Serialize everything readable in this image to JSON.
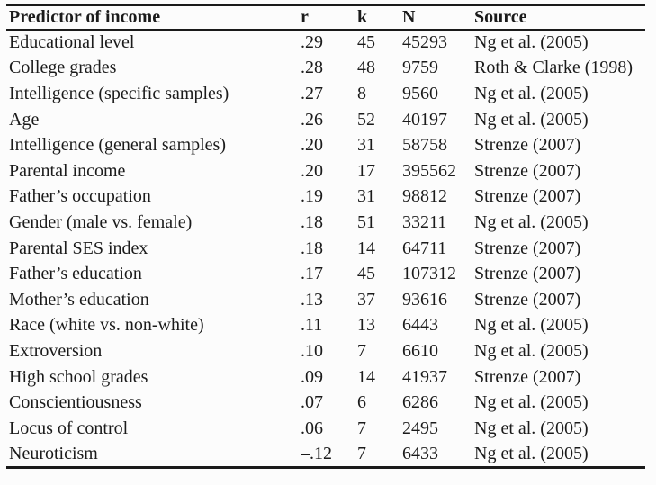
{
  "page": {
    "background": "#fcfcfc",
    "text_color": "#1b1b1b",
    "rule_color": "#1a1a1a"
  },
  "table": {
    "columns": [
      {
        "key": "predictor",
        "label": "Predictor of income"
      },
      {
        "key": "r",
        "label": "r"
      },
      {
        "key": "k",
        "label": "k"
      },
      {
        "key": "n",
        "label": "N"
      },
      {
        "key": "source",
        "label": "Source"
      }
    ],
    "rows": [
      {
        "predictor": "Educational level",
        "r": ".29",
        "k": "45",
        "n": "45293",
        "source": "Ng et al. (2005)"
      },
      {
        "predictor": "College grades",
        "r": ".28",
        "k": "48",
        "n": "9759",
        "source": "Roth & Clarke (1998)"
      },
      {
        "predictor": "Intelligence (specific samples)",
        "r": ".27",
        "k": "8",
        "n": "9560",
        "source": "Ng et al. (2005)"
      },
      {
        "predictor": "Age",
        "r": ".26",
        "k": "52",
        "n": "40197",
        "source": "Ng et al. (2005)"
      },
      {
        "predictor": "Intelligence (general samples)",
        "r": ".20",
        "k": "31",
        "n": "58758",
        "source": "Strenze (2007)"
      },
      {
        "predictor": "Parental income",
        "r": ".20",
        "k": "17",
        "n": "395562",
        "source": "Strenze (2007)"
      },
      {
        "predictor": "Father’s occupation",
        "r": ".19",
        "k": "31",
        "n": "98812",
        "source": "Strenze (2007)"
      },
      {
        "predictor": "Gender (male vs. female)",
        "r": ".18",
        "k": "51",
        "n": "33211",
        "source": "Ng et al. (2005)"
      },
      {
        "predictor": "Parental SES index",
        "r": ".18",
        "k": "14",
        "n": "64711",
        "source": "Strenze (2007)"
      },
      {
        "predictor": "Father’s education",
        "r": ".17",
        "k": "45",
        "n": "107312",
        "source": "Strenze (2007)"
      },
      {
        "predictor": "Mother’s education",
        "r": ".13",
        "k": "37",
        "n": "93616",
        "source": "Strenze (2007)"
      },
      {
        "predictor": "Race (white vs. non-white)",
        "r": ".11",
        "k": "13",
        "n": "6443",
        "source": "Ng et al. (2005)"
      },
      {
        "predictor": "Extroversion",
        "r": ".10",
        "k": "7",
        "n": "6610",
        "source": "Ng et al. (2005)"
      },
      {
        "predictor": "High school grades",
        "r": ".09",
        "k": "14",
        "n": "41937",
        "source": "Strenze (2007)"
      },
      {
        "predictor": "Conscientiousness",
        "r": ".07",
        "k": "6",
        "n": "6286",
        "source": "Ng et al. (2005)"
      },
      {
        "predictor": "Locus of control",
        "r": ".06",
        "k": "7",
        "n": "2495",
        "source": "Ng et al. (2005)"
      },
      {
        "predictor": "Neuroticism",
        "r": "–.12",
        "k": "7",
        "n": "6433",
        "source": "Ng et al. (2005)"
      }
    ]
  }
}
